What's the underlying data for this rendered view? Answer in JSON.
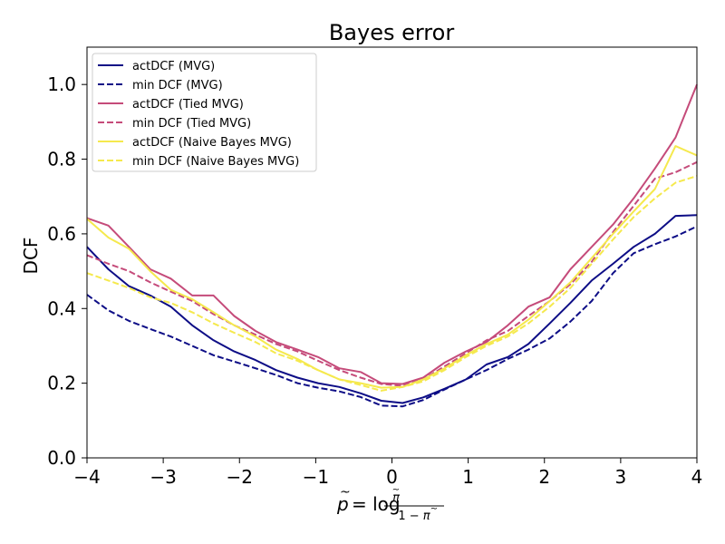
{
  "chart_data": {
    "type": "line",
    "title": "Bayes error",
    "ylabel": "DCF",
    "xlim": [
      -4,
      4
    ],
    "ylim": [
      0.0,
      1.1
    ],
    "xticks": [
      -4,
      -3,
      -2,
      -1,
      0,
      1,
      2,
      3,
      4
    ],
    "xtick_labels": [
      "−4",
      "−3",
      "−2",
      "−1",
      "0",
      "1",
      "2",
      "3",
      "4"
    ],
    "yticks": [
      0.0,
      0.2,
      0.4,
      0.6,
      0.8,
      1.0
    ],
    "ytick_labels": [
      "0.0",
      "0.2",
      "0.4",
      "0.6",
      "0.8",
      "1.0"
    ],
    "grid": false,
    "legend_position": "top-left",
    "x": [
      -4.0,
      -3.72,
      -3.45,
      -3.17,
      -2.9,
      -2.62,
      -2.34,
      -2.07,
      -1.79,
      -1.52,
      -1.24,
      -0.97,
      -0.69,
      -0.41,
      -0.14,
      0.14,
      0.41,
      0.69,
      0.97,
      1.24,
      1.52,
      1.79,
      2.07,
      2.34,
      2.62,
      2.9,
      3.17,
      3.45,
      3.72,
      4.0
    ],
    "series": [
      {
        "name": "actDCF (MVG)",
        "color": "#0d0d86",
        "dash": "solid",
        "values": [
          0.565,
          0.505,
          0.46,
          0.435,
          0.405,
          0.355,
          0.315,
          0.285,
          0.262,
          0.235,
          0.215,
          0.2,
          0.19,
          0.173,
          0.153,
          0.147,
          0.162,
          0.185,
          0.21,
          0.25,
          0.27,
          0.305,
          0.36,
          0.415,
          0.475,
          0.52,
          0.565,
          0.6,
          0.648,
          0.65
        ]
      },
      {
        "name": "min DCF (MVG)",
        "color": "#0d0d86",
        "dash": "dashed",
        "values": [
          0.437,
          0.395,
          0.367,
          0.345,
          0.325,
          0.3,
          0.275,
          0.258,
          0.24,
          0.222,
          0.2,
          0.188,
          0.178,
          0.163,
          0.14,
          0.138,
          0.155,
          0.183,
          0.21,
          0.235,
          0.265,
          0.29,
          0.32,
          0.365,
          0.42,
          0.495,
          0.548,
          0.572,
          0.593,
          0.62
        ]
      },
      {
        "name": "actDCF (Tied MVG)",
        "color": "#c54b7a",
        "dash": "solid",
        "values": [
          0.642,
          0.622,
          0.565,
          0.505,
          0.48,
          0.435,
          0.435,
          0.38,
          0.34,
          0.31,
          0.29,
          0.27,
          0.24,
          0.23,
          0.2,
          0.198,
          0.215,
          0.255,
          0.285,
          0.31,
          0.355,
          0.405,
          0.43,
          0.505,
          0.565,
          0.625,
          0.695,
          0.775,
          0.858,
          1.0
        ]
      },
      {
        "name": "min DCF (Tied MVG)",
        "color": "#c54b7a",
        "dash": "dashed",
        "values": [
          0.543,
          0.52,
          0.5,
          0.47,
          0.445,
          0.42,
          0.385,
          0.355,
          0.33,
          0.305,
          0.285,
          0.26,
          0.235,
          0.215,
          0.198,
          0.193,
          0.21,
          0.245,
          0.28,
          0.315,
          0.34,
          0.38,
          0.42,
          0.465,
          0.525,
          0.605,
          0.675,
          0.748,
          0.765,
          0.792
        ]
      },
      {
        "name": "actDCF (Naive Bayes MVG)",
        "color": "#f5e94d",
        "dash": "solid",
        "values": [
          0.64,
          0.59,
          0.56,
          0.5,
          0.45,
          0.425,
          0.39,
          0.355,
          0.325,
          0.29,
          0.265,
          0.235,
          0.21,
          0.2,
          0.188,
          0.19,
          0.21,
          0.24,
          0.275,
          0.305,
          0.33,
          0.37,
          0.42,
          0.47,
          0.535,
          0.6,
          0.66,
          0.72,
          0.835,
          0.81
        ]
      },
      {
        "name": "min DCF (Naive Bayes MVG)",
        "color": "#f5e94d",
        "dash": "dashed",
        "values": [
          0.495,
          0.475,
          0.455,
          0.43,
          0.415,
          0.39,
          0.36,
          0.335,
          0.31,
          0.28,
          0.26,
          0.235,
          0.21,
          0.195,
          0.18,
          0.19,
          0.205,
          0.235,
          0.27,
          0.3,
          0.325,
          0.36,
          0.405,
          0.455,
          0.52,
          0.585,
          0.645,
          0.695,
          0.737,
          0.755
        ]
      }
    ]
  }
}
